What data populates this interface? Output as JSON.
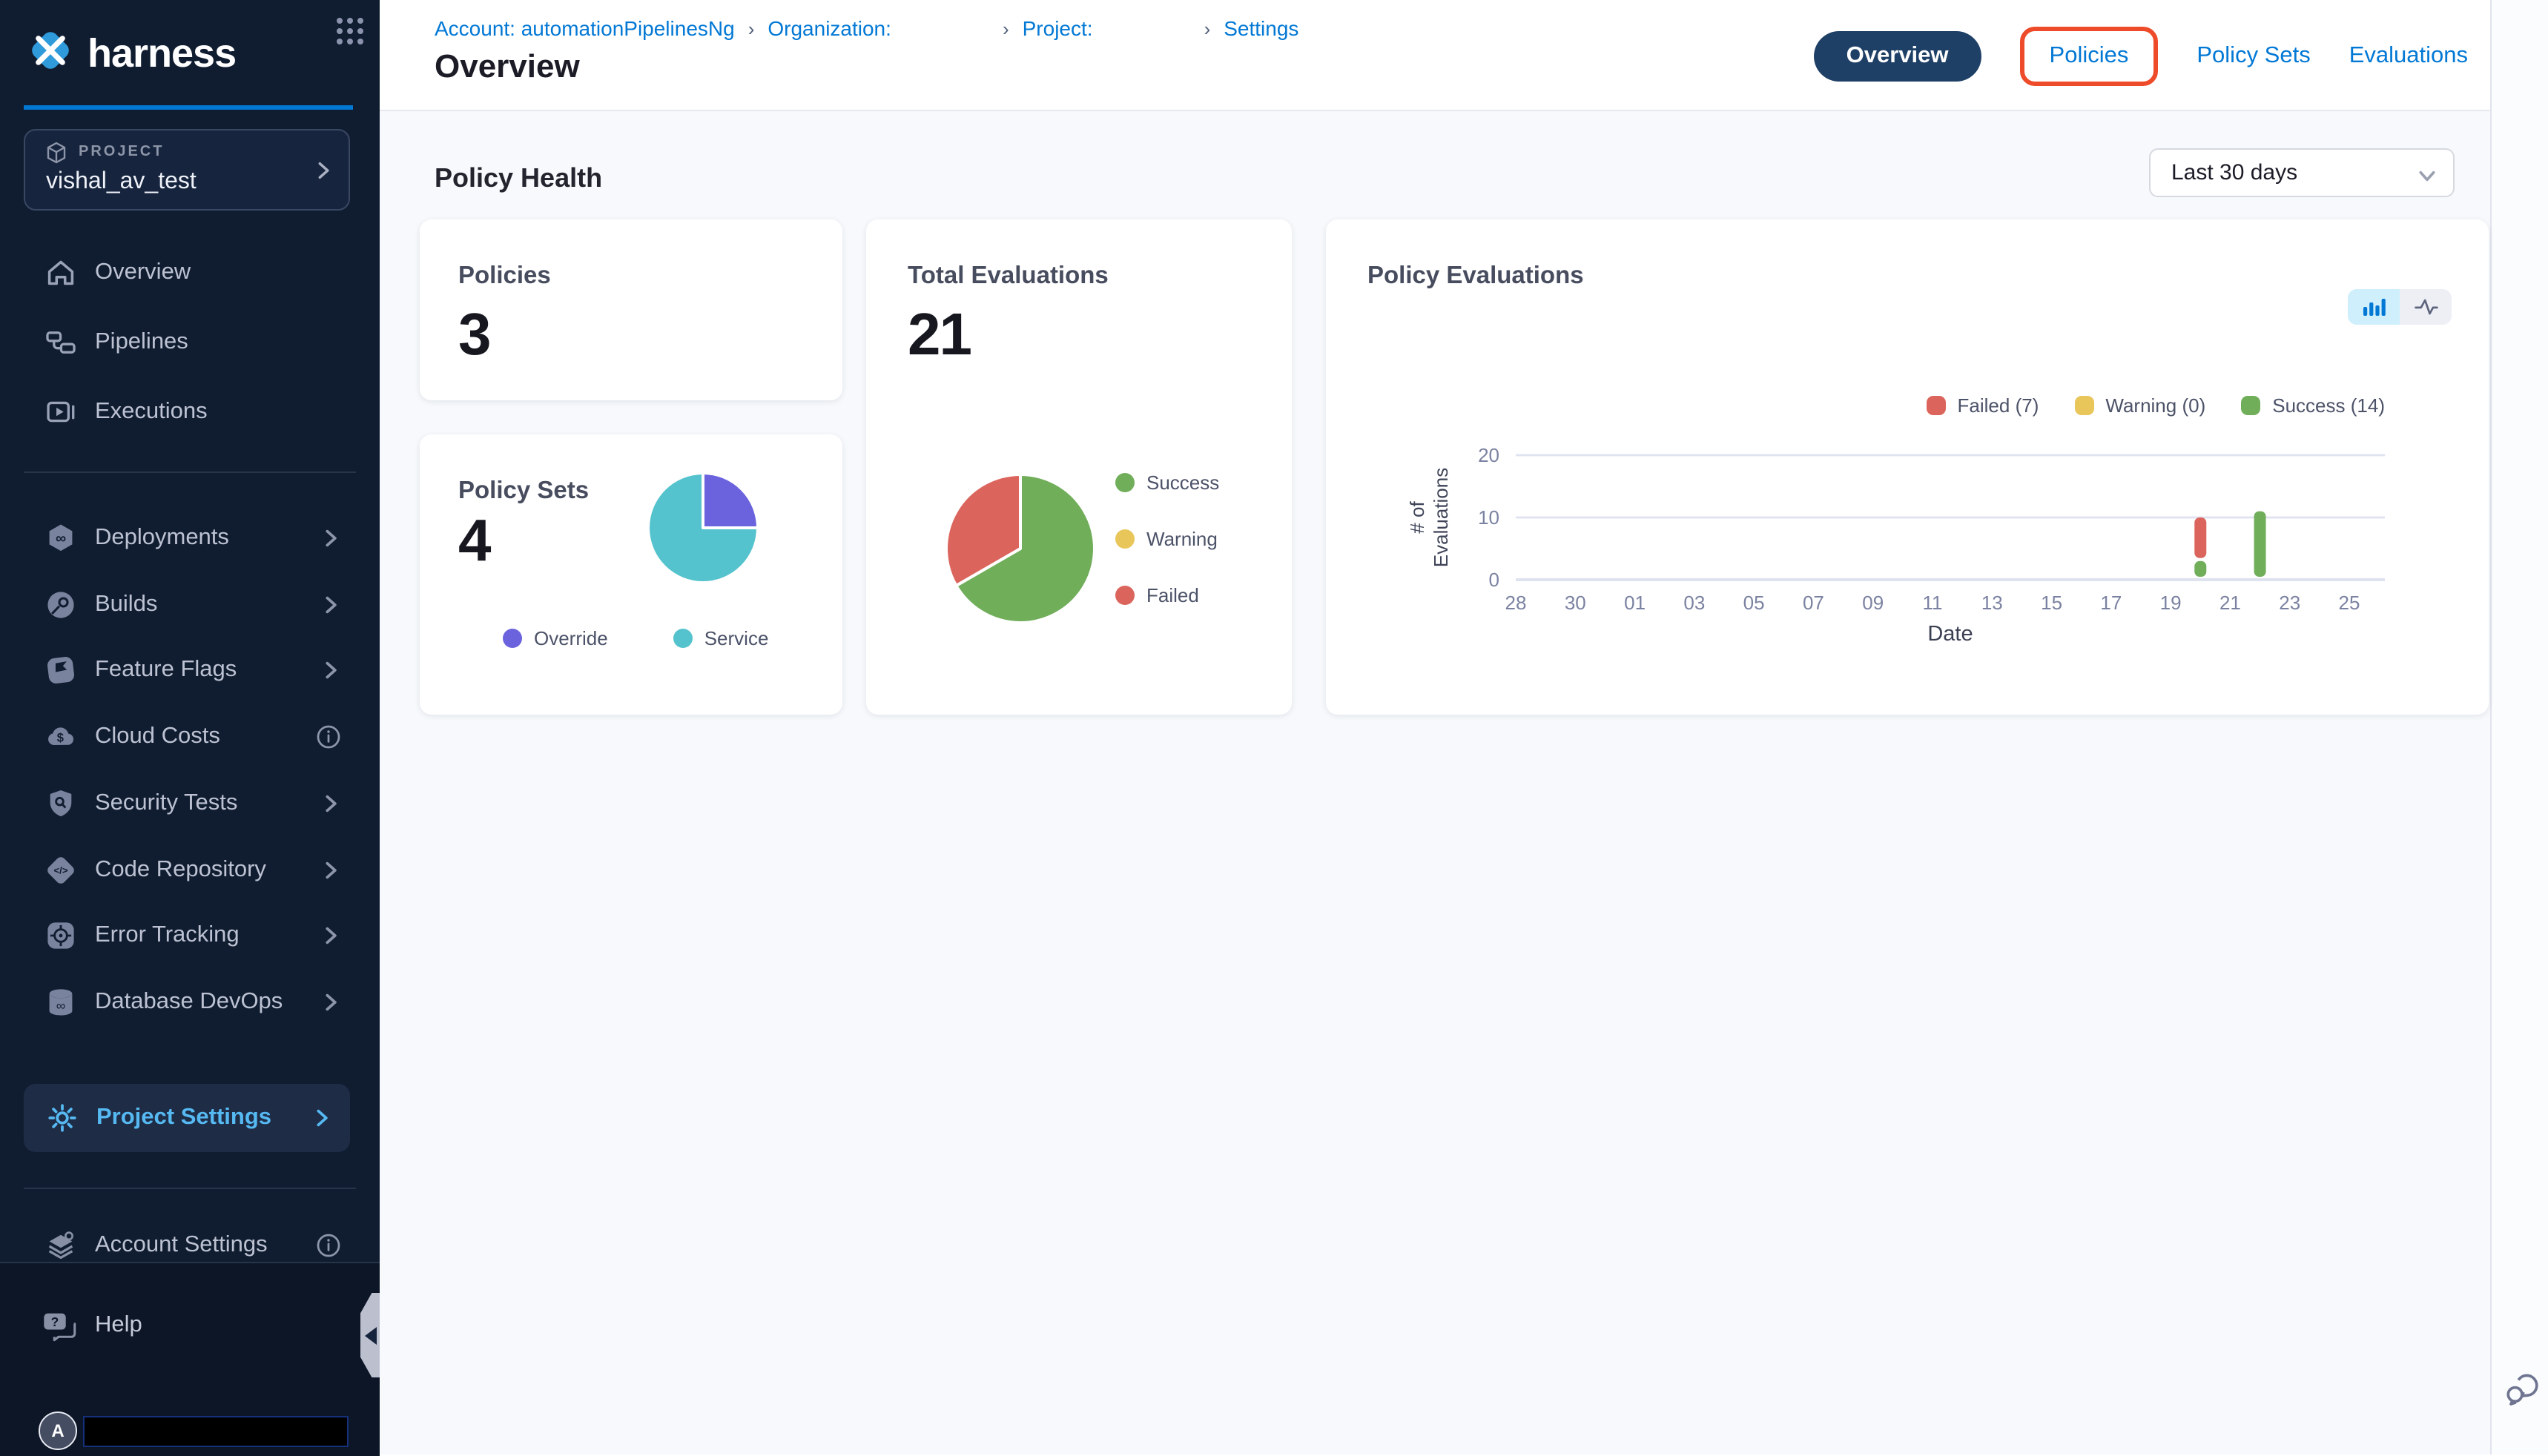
{
  "colors": {
    "accent_blue": "#0278d5",
    "nav_bg": "#101d31",
    "nav_footer_bg": "#0c1626",
    "active_tab_bg": "#1f4066",
    "annotation_red": "#ee4b2a",
    "content_bg": "#f7f9fc",
    "success_green": "#70ae5a",
    "failed_red": "#db655c",
    "warning_yellow": "#e8c65a",
    "override_purple": "#6b63dd",
    "service_teal": "#54c3cd",
    "project_settings_blue": "#56b9f2"
  },
  "sidebar": {
    "logo_text": "harness",
    "project_card": {
      "label": "PROJECT",
      "name": "vishal_av_test"
    },
    "nav_items": [
      {
        "label": "Overview",
        "icon": "home-icon"
      },
      {
        "label": "Pipelines",
        "icon": "pipelines-icon"
      },
      {
        "label": "Executions",
        "icon": "executions-icon"
      }
    ],
    "modules": [
      {
        "label": "Deployments",
        "icon": "deployments-icon",
        "trailing": "chevron"
      },
      {
        "label": "Builds",
        "icon": "builds-icon",
        "trailing": "chevron"
      },
      {
        "label": "Feature Flags",
        "icon": "feature-flags-icon",
        "trailing": "chevron"
      },
      {
        "label": "Cloud Costs",
        "icon": "cloud-costs-icon",
        "trailing": "info"
      },
      {
        "label": "Security Tests",
        "icon": "security-tests-icon",
        "trailing": "chevron"
      },
      {
        "label": "Code Repository",
        "icon": "code-repository-icon",
        "trailing": "chevron"
      },
      {
        "label": "Error Tracking",
        "icon": "error-tracking-icon",
        "trailing": "chevron"
      },
      {
        "label": "Database DevOps",
        "icon": "database-devops-icon",
        "trailing": "chevron"
      }
    ],
    "project_settings": {
      "label": "Project Settings",
      "icon": "gear-icon",
      "trailing": "chevron"
    },
    "account_settings": {
      "label": "Account Settings",
      "icon": "layers-gear-icon",
      "trailing": "info"
    },
    "help": {
      "label": "Help",
      "icon": "help-chat-icon"
    },
    "user": {
      "avatar_letter": "A"
    }
  },
  "header": {
    "breadcrumb": [
      {
        "label": "Account: automationPipelinesNg",
        "redacted_value": false
      },
      {
        "label": "Organization:",
        "redacted_value": true
      },
      {
        "label": "Project:",
        "redacted_value": true
      },
      {
        "label": "Settings",
        "redacted_value": false
      }
    ],
    "page_title": "Overview",
    "tabs": [
      {
        "label": "Overview",
        "active": true,
        "annotated": false
      },
      {
        "label": "Policies",
        "active": false,
        "annotated": true
      },
      {
        "label": "Policy Sets",
        "active": false,
        "annotated": false
      },
      {
        "label": "Evaluations",
        "active": false,
        "annotated": false
      }
    ]
  },
  "main": {
    "section_title": "Policy Health",
    "date_filter": {
      "value": "Last 30 days"
    },
    "cards": {
      "policies": {
        "title": "Policies",
        "value": "3"
      },
      "total_evaluations": {
        "title": "Total Evaluations",
        "value": "21"
      },
      "policy_sets": {
        "title": "Policy Sets",
        "value": "4"
      },
      "policy_evaluations": {
        "title": "Policy Evaluations"
      }
    }
  },
  "chart_data": [
    {
      "type": "pie",
      "title": "Total Evaluations",
      "legend_position": "right",
      "slices": [
        {
          "label": "Success",
          "value": 14,
          "color": "#70ae5a"
        },
        {
          "label": "Warning",
          "value": 0,
          "color": "#e8c65a"
        },
        {
          "label": "Failed",
          "value": 7,
          "color": "#db655c"
        }
      ]
    },
    {
      "type": "pie",
      "title": "Policy Sets",
      "legend_position": "bottom",
      "slices": [
        {
          "label": "Override",
          "value": 1,
          "color": "#6b63dd"
        },
        {
          "label": "Service",
          "value": 3,
          "color": "#54c3cd"
        }
      ]
    },
    {
      "type": "bar",
      "stacked": true,
      "title": "Policy Evaluations",
      "xlabel": "Date",
      "ylabel": "# of Evaluations",
      "ylim": [
        0,
        20
      ],
      "y_ticks": [
        0,
        10,
        20
      ],
      "x_ticks": [
        "28",
        "30",
        "01",
        "03",
        "05",
        "07",
        "09",
        "11",
        "13",
        "15",
        "17",
        "19",
        "21",
        "23",
        "25"
      ],
      "grid": true,
      "legend": [
        {
          "label": "Failed (7)",
          "color": "#db655c"
        },
        {
          "label": "Warning (0)",
          "color": "#e8c65a"
        },
        {
          "label": "Success (14)",
          "color": "#70ae5a"
        }
      ],
      "bars": [
        {
          "date": "20",
          "x_index": 11.5,
          "segments": [
            {
              "name": "Success",
              "value": 3,
              "color": "#70ae5a"
            },
            {
              "name": "Failed",
              "value": 7,
              "color": "#db655c"
            }
          ]
        },
        {
          "date": "22",
          "x_index": 12.5,
          "segments": [
            {
              "name": "Success",
              "value": 11,
              "color": "#70ae5a"
            }
          ]
        }
      ]
    }
  ]
}
